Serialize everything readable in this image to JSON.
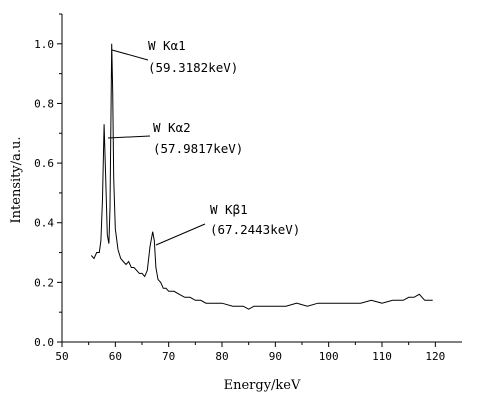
{
  "chart_data": {
    "type": "line",
    "xlabel": "Energy/keV",
    "ylabel": "Intensity/a.u.",
    "xlim": [
      50,
      125
    ],
    "ylim": [
      0,
      1.1
    ],
    "x_ticks": [
      50,
      60,
      70,
      80,
      90,
      100,
      110,
      120
    ],
    "y_ticks": [
      0.0,
      0.2,
      0.4,
      0.6,
      0.8,
      1.0
    ],
    "x_tick_labels": [
      "50",
      "60",
      "70",
      "80",
      "90",
      "100",
      "110",
      "120"
    ],
    "y_tick_labels": [
      "0.0",
      "0.2",
      "0.4",
      "0.6",
      "0.8",
      "1.0"
    ],
    "grid": false,
    "series": [
      {
        "color": "#000000",
        "points": [
          [
            55.5,
            0.29
          ],
          [
            56.0,
            0.28
          ],
          [
            56.5,
            0.3
          ],
          [
            57.0,
            0.3
          ],
          [
            57.3,
            0.34
          ],
          [
            57.6,
            0.48
          ],
          [
            57.9,
            0.73
          ],
          [
            58.2,
            0.55
          ],
          [
            58.5,
            0.36
          ],
          [
            58.8,
            0.33
          ],
          [
            59.0,
            0.45
          ],
          [
            59.2,
            0.8
          ],
          [
            59.32,
            1.0
          ],
          [
            59.5,
            0.84
          ],
          [
            59.7,
            0.55
          ],
          [
            60.0,
            0.38
          ],
          [
            60.5,
            0.31
          ],
          [
            61.0,
            0.28
          ],
          [
            61.5,
            0.27
          ],
          [
            62.0,
            0.26
          ],
          [
            62.5,
            0.27
          ],
          [
            63.0,
            0.25
          ],
          [
            63.5,
            0.25
          ],
          [
            64.0,
            0.24
          ],
          [
            64.5,
            0.23
          ],
          [
            65.0,
            0.23
          ],
          [
            65.5,
            0.22
          ],
          [
            66.0,
            0.24
          ],
          [
            66.5,
            0.32
          ],
          [
            67.0,
            0.37
          ],
          [
            67.3,
            0.34
          ],
          [
            67.6,
            0.25
          ],
          [
            68.0,
            0.21
          ],
          [
            68.5,
            0.2
          ],
          [
            69.0,
            0.18
          ],
          [
            69.5,
            0.18
          ],
          [
            70.0,
            0.17
          ],
          [
            71.0,
            0.17
          ],
          [
            72.0,
            0.16
          ],
          [
            73.0,
            0.15
          ],
          [
            74.0,
            0.15
          ],
          [
            75.0,
            0.14
          ],
          [
            76.0,
            0.14
          ],
          [
            77.0,
            0.13
          ],
          [
            78.0,
            0.13
          ],
          [
            80.0,
            0.13
          ],
          [
            82.0,
            0.12
          ],
          [
            84.0,
            0.12
          ],
          [
            85.0,
            0.11
          ],
          [
            86.0,
            0.12
          ],
          [
            88.0,
            0.12
          ],
          [
            90.0,
            0.12
          ],
          [
            92.0,
            0.12
          ],
          [
            94.0,
            0.13
          ],
          [
            96.0,
            0.12
          ],
          [
            98.0,
            0.13
          ],
          [
            100.0,
            0.13
          ],
          [
            102.0,
            0.13
          ],
          [
            104.0,
            0.13
          ],
          [
            106.0,
            0.13
          ],
          [
            108.0,
            0.14
          ],
          [
            110.0,
            0.13
          ],
          [
            112.0,
            0.14
          ],
          [
            114.0,
            0.14
          ],
          [
            115.0,
            0.15
          ],
          [
            116.0,
            0.15
          ],
          [
            117.0,
            0.16
          ],
          [
            118.0,
            0.14
          ],
          [
            119.0,
            0.14
          ],
          [
            119.5,
            0.14
          ]
        ]
      }
    ],
    "annotations": [
      {
        "line1": "W Kα1",
        "line2": "(59.3182keV)",
        "x": 59.32,
        "y": 1.0
      },
      {
        "line1": "W Kα2",
        "line2": "(57.9817keV)",
        "x": 57.98,
        "y": 0.73
      },
      {
        "line1": "W Kβ1",
        "line2": "(67.2443keV)",
        "x": 67.24,
        "y": 0.37
      }
    ]
  }
}
